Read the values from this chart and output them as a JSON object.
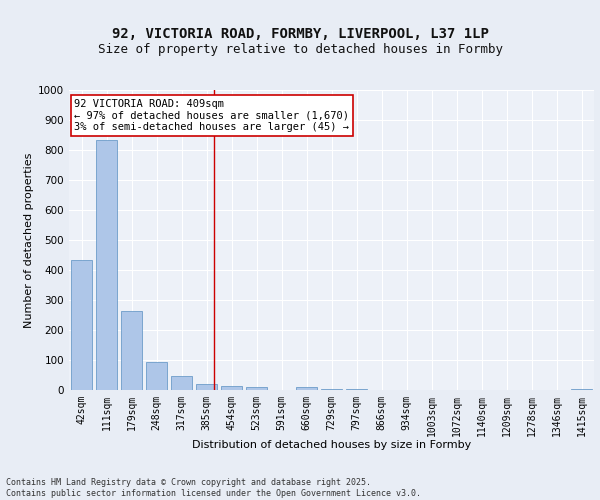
{
  "title_line1": "92, VICTORIA ROAD, FORMBY, LIVERPOOL, L37 1LP",
  "title_line2": "Size of property relative to detached houses in Formby",
  "xlabel": "Distribution of detached houses by size in Formby",
  "ylabel": "Number of detached properties",
  "bar_labels": [
    "42sqm",
    "111sqm",
    "179sqm",
    "248sqm",
    "317sqm",
    "385sqm",
    "454sqm",
    "523sqm",
    "591sqm",
    "660sqm",
    "729sqm",
    "797sqm",
    "866sqm",
    "934sqm",
    "1003sqm",
    "1072sqm",
    "1140sqm",
    "1209sqm",
    "1278sqm",
    "1346sqm",
    "1415sqm"
  ],
  "bar_values": [
    435,
    835,
    265,
    95,
    48,
    20,
    12,
    10,
    0,
    10,
    5,
    2,
    1,
    0,
    0,
    0,
    0,
    0,
    0,
    0,
    5
  ],
  "bar_color": "#aec6e8",
  "bar_edge_color": "#5a8fc2",
  "ylim": [
    0,
    1000
  ],
  "yticks": [
    0,
    100,
    200,
    300,
    400,
    500,
    600,
    700,
    800,
    900,
    1000
  ],
  "vline_x": 5.3,
  "vline_color": "#cc0000",
  "annotation_text": "92 VICTORIA ROAD: 409sqm\n← 97% of detached houses are smaller (1,670)\n3% of semi-detached houses are larger (45) →",
  "annotation_box_color": "#ffffff",
  "annotation_box_edge_color": "#cc0000",
  "bg_color": "#e8edf5",
  "plot_bg_color": "#edf1f8",
  "grid_color": "#ffffff",
  "footer_text": "Contains HM Land Registry data © Crown copyright and database right 2025.\nContains public sector information licensed under the Open Government Licence v3.0.",
  "title_fontsize": 10,
  "subtitle_fontsize": 9,
  "axis_label_fontsize": 8,
  "tick_fontsize": 7,
  "annotation_fontsize": 7.5
}
